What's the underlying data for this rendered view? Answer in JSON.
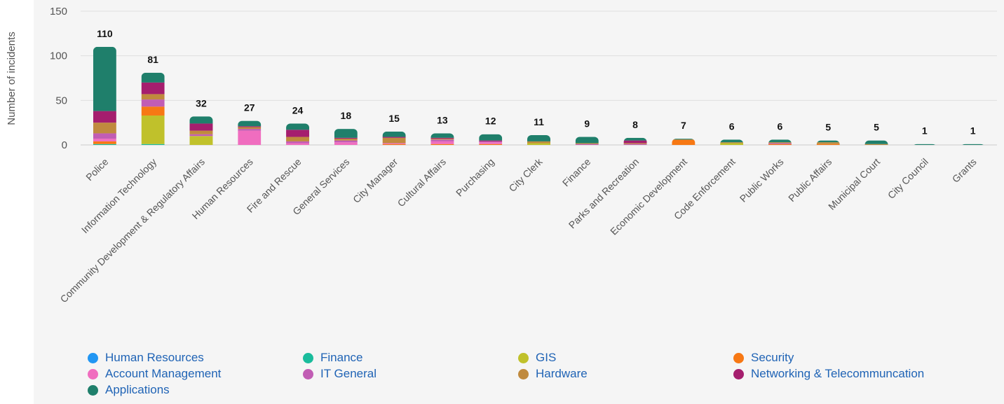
{
  "chart_data": {
    "type": "bar",
    "stacked": true,
    "title": "",
    "xlabel": "",
    "ylabel": "Number of incidents",
    "ylim": [
      0,
      150
    ],
    "yticks": [
      0,
      50,
      100,
      150
    ],
    "grid": true,
    "legend_position": "bottom",
    "categories": [
      "Police",
      "Information Technology",
      "Community Development & Regulatory Affairs",
      "Human Resources",
      "Fire and Rescue",
      "General Services",
      "City Manager",
      "Cultural Affairs",
      "Purchasing",
      "City Clerk",
      "Finance",
      "Parks and Recreation",
      "Economic Development",
      "Code Enforcement",
      "Public Works",
      "Public Affairs",
      "Municipal Court",
      "City Council",
      "Grants"
    ],
    "totals": [
      110,
      81,
      32,
      27,
      24,
      18,
      15,
      13,
      12,
      11,
      9,
      8,
      7,
      6,
      6,
      5,
      5,
      1,
      1
    ],
    "series": [
      {
        "name": "Human Resources",
        "color": "#2196f3",
        "values": [
          0,
          0,
          0,
          0,
          0,
          0,
          0,
          0,
          0,
          0,
          0,
          0,
          0,
          0,
          0,
          0,
          0,
          0,
          0
        ]
      },
      {
        "name": "Finance",
        "color": "#1abc9c",
        "values": [
          1,
          1,
          0,
          0,
          0,
          0,
          0,
          0,
          0,
          0,
          0,
          0,
          0,
          0,
          0,
          0,
          0,
          0,
          0
        ]
      },
      {
        "name": "GIS",
        "color": "#c0c12b",
        "values": [
          0,
          32,
          10,
          0,
          0,
          0,
          0,
          0,
          0,
          2,
          0,
          0,
          0,
          2,
          0,
          0,
          0,
          0,
          0
        ]
      },
      {
        "name": "Security",
        "color": "#f77814",
        "values": [
          3,
          10,
          0,
          0,
          0,
          0,
          1,
          1,
          1,
          0,
          0,
          0,
          6,
          0,
          1,
          1,
          0,
          0,
          0
        ]
      },
      {
        "name": "Account Management",
        "color": "#f06dbf",
        "values": [
          3,
          0,
          0,
          16,
          2,
          3,
          1,
          3,
          2,
          0,
          0,
          0,
          0,
          0,
          0,
          0,
          0,
          0,
          0
        ]
      },
      {
        "name": "IT General",
        "color": "#c15db4",
        "values": [
          6,
          8,
          2,
          2,
          2,
          2,
          0,
          2,
          1,
          0,
          1,
          1,
          0,
          0,
          1,
          0,
          0,
          0,
          0
        ]
      },
      {
        "name": "Hardware",
        "color": "#c08a3e",
        "values": [
          12,
          6,
          4,
          2,
          5,
          2,
          6,
          1,
          0,
          2,
          1,
          1,
          0,
          1,
          1,
          2,
          1,
          0,
          0
        ]
      },
      {
        "name": "Networking & Telecommuncation",
        "color": "#a51e6e",
        "values": [
          13,
          13,
          8,
          1,
          8,
          1,
          1,
          1,
          1,
          0,
          0,
          3,
          0,
          0,
          0,
          0,
          0,
          0,
          0
        ]
      },
      {
        "name": "Applications",
        "color": "#1f7f6b",
        "values": [
          72,
          11,
          8,
          6,
          7,
          10,
          6,
          5,
          7,
          7,
          7,
          3,
          1,
          3,
          3,
          2,
          4,
          1,
          1
        ]
      }
    ]
  }
}
